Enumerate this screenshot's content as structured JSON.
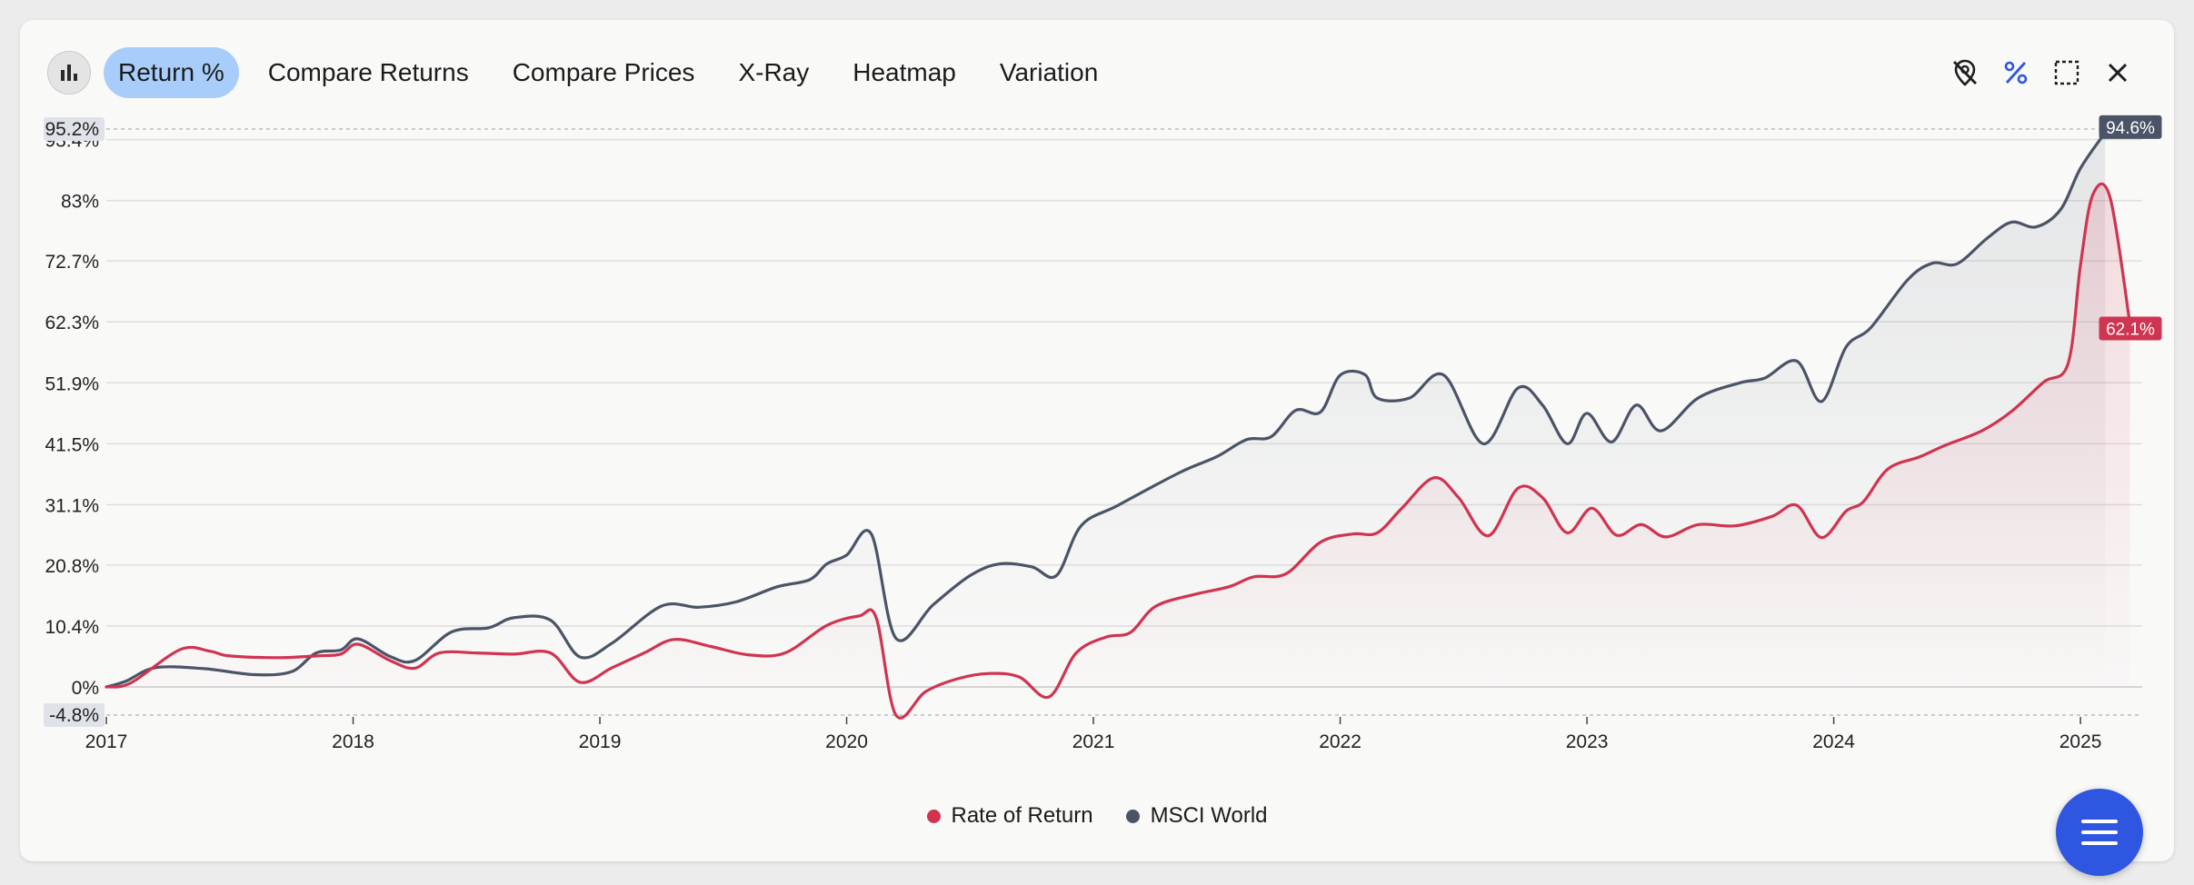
{
  "toolbar": {
    "tabs": [
      {
        "label": "Return %",
        "active": true
      },
      {
        "label": "Compare Returns",
        "active": false
      },
      {
        "label": "Compare Prices",
        "active": false
      },
      {
        "label": "X-Ray",
        "active": false
      },
      {
        "label": "Heatmap",
        "active": false
      },
      {
        "label": "Variation",
        "active": false
      }
    ],
    "left_icon": "bar-chart-icon",
    "right_icons": [
      "location-off-icon",
      "percent-icon",
      "expand-icon",
      "close-icon"
    ],
    "accent_color": "#2e56e0"
  },
  "chart_data": {
    "type": "line",
    "x_ticks": [
      "2017",
      "2018",
      "2019",
      "2020",
      "2021",
      "2022",
      "2023",
      "2024",
      "2025"
    ],
    "y_ticks": [
      "0%",
      "10.4%",
      "20.8%",
      "31.1%",
      "41.5%",
      "51.9%",
      "62.3%",
      "72.7%",
      "83%",
      "93.4%"
    ],
    "y_min_label": "-4.8%",
    "y_max_label": "95.2%",
    "ylim": [
      -4.8,
      95.2
    ],
    "xlim": [
      2017.0,
      2025.25
    ],
    "grid": true,
    "legend_position": "bottom",
    "series": [
      {
        "name": "MSCI World",
        "color": "#4a5466",
        "end_label": "94.6%",
        "points": [
          [
            2017.0,
            0
          ],
          [
            2017.08,
            1
          ],
          [
            2017.2,
            3.3
          ],
          [
            2017.4,
            3.1
          ],
          [
            2017.6,
            2.1
          ],
          [
            2017.75,
            2.6
          ],
          [
            2017.85,
            5.8
          ],
          [
            2017.95,
            6.3
          ],
          [
            2018.02,
            8.2
          ],
          [
            2018.15,
            5.2
          ],
          [
            2018.25,
            4.5
          ],
          [
            2018.4,
            9.4
          ],
          [
            2018.55,
            10.1
          ],
          [
            2018.65,
            11.8
          ],
          [
            2018.8,
            11.4
          ],
          [
            2018.92,
            5.1
          ],
          [
            2019.05,
            7.5
          ],
          [
            2019.25,
            13.8
          ],
          [
            2019.4,
            13.6
          ],
          [
            2019.55,
            14.5
          ],
          [
            2019.72,
            17.1
          ],
          [
            2019.85,
            18.3
          ],
          [
            2019.92,
            21
          ],
          [
            2020.0,
            22.5
          ],
          [
            2020.1,
            26.1
          ],
          [
            2020.2,
            8.3
          ],
          [
            2020.35,
            14
          ],
          [
            2020.5,
            19
          ],
          [
            2020.62,
            21
          ],
          [
            2020.75,
            20.5
          ],
          [
            2020.85,
            19
          ],
          [
            2020.95,
            27.5
          ],
          [
            2021.1,
            31
          ],
          [
            2021.35,
            36.6
          ],
          [
            2021.5,
            39.3
          ],
          [
            2021.62,
            42.2
          ],
          [
            2021.72,
            42.7
          ],
          [
            2021.82,
            47.2
          ],
          [
            2021.92,
            46.9
          ],
          [
            2022.0,
            53.2
          ],
          [
            2022.1,
            53.3
          ],
          [
            2022.15,
            49.3
          ],
          [
            2022.28,
            49.3
          ],
          [
            2022.42,
            53.2
          ],
          [
            2022.58,
            41.5
          ],
          [
            2022.72,
            51
          ],
          [
            2022.82,
            48.1
          ],
          [
            2022.92,
            41.5
          ],
          [
            2023.0,
            46.7
          ],
          [
            2023.1,
            41.8
          ],
          [
            2023.2,
            48.1
          ],
          [
            2023.3,
            43.7
          ],
          [
            2023.45,
            49.3
          ],
          [
            2023.62,
            51.9
          ],
          [
            2023.72,
            52.7
          ],
          [
            2023.85,
            55.6
          ],
          [
            2023.95,
            48.7
          ],
          [
            2024.05,
            58
          ],
          [
            2024.15,
            61.3
          ],
          [
            2024.3,
            69.5
          ],
          [
            2024.4,
            72.3
          ],
          [
            2024.5,
            72.2
          ],
          [
            2024.62,
            76.5
          ],
          [
            2024.72,
            79.3
          ],
          [
            2024.82,
            78.5
          ],
          [
            2024.92,
            81.5
          ],
          [
            2025.0,
            88.5
          ],
          [
            2025.1,
            94.6
          ]
        ]
      },
      {
        "name": "Rate of Return",
        "color": "#cf3450",
        "end_label": "62.1%",
        "points": [
          [
            2017.0,
            0
          ],
          [
            2017.1,
            0.7
          ],
          [
            2017.3,
            6.4
          ],
          [
            2017.42,
            6.1
          ],
          [
            2017.5,
            5.3
          ],
          [
            2017.7,
            5
          ],
          [
            2017.85,
            5.3
          ],
          [
            2017.95,
            5.6
          ],
          [
            2018.02,
            7.3
          ],
          [
            2018.15,
            4.5
          ],
          [
            2018.25,
            3.2
          ],
          [
            2018.35,
            5.8
          ],
          [
            2018.5,
            5.8
          ],
          [
            2018.65,
            5.6
          ],
          [
            2018.8,
            5.8
          ],
          [
            2018.92,
            0.8
          ],
          [
            2019.05,
            3.3
          ],
          [
            2019.18,
            5.8
          ],
          [
            2019.3,
            8.1
          ],
          [
            2019.45,
            6.9
          ],
          [
            2019.6,
            5.5
          ],
          [
            2019.75,
            5.8
          ],
          [
            2019.92,
            10.5
          ],
          [
            2020.05,
            12.1
          ],
          [
            2020.12,
            11.8
          ],
          [
            2020.2,
            -4.8
          ],
          [
            2020.32,
            -0.8
          ],
          [
            2020.45,
            1.4
          ],
          [
            2020.58,
            2.3
          ],
          [
            2020.7,
            1.7
          ],
          [
            2020.82,
            -1.7
          ],
          [
            2020.93,
            5.8
          ],
          [
            2021.05,
            8.5
          ],
          [
            2021.15,
            9.3
          ],
          [
            2021.25,
            13.7
          ],
          [
            2021.4,
            15.7
          ],
          [
            2021.55,
            17.1
          ],
          [
            2021.65,
            18.8
          ],
          [
            2021.78,
            19.3
          ],
          [
            2021.92,
            24.7
          ],
          [
            2022.05,
            26.1
          ],
          [
            2022.15,
            26.3
          ],
          [
            2022.25,
            30.5
          ],
          [
            2022.38,
            35.7
          ],
          [
            2022.48,
            32.3
          ],
          [
            2022.6,
            25.8
          ],
          [
            2022.72,
            33.9
          ],
          [
            2022.82,
            32.3
          ],
          [
            2022.92,
            26.3
          ],
          [
            2023.02,
            30.5
          ],
          [
            2023.12,
            25.9
          ],
          [
            2023.22,
            27.7
          ],
          [
            2023.32,
            25.6
          ],
          [
            2023.45,
            27.7
          ],
          [
            2023.6,
            27.5
          ],
          [
            2023.75,
            29.1
          ],
          [
            2023.85,
            31
          ],
          [
            2023.95,
            25.5
          ],
          [
            2024.05,
            30
          ],
          [
            2024.12,
            31.6
          ],
          [
            2024.22,
            37.2
          ],
          [
            2024.35,
            39.3
          ],
          [
            2024.45,
            41.2
          ],
          [
            2024.6,
            43.7
          ],
          [
            2024.72,
            47
          ],
          [
            2024.85,
            52
          ],
          [
            2024.95,
            55.2
          ],
          [
            2025.0,
            72
          ],
          [
            2025.05,
            84
          ],
          [
            2025.12,
            83.5
          ],
          [
            2025.2,
            62.1
          ]
        ]
      }
    ]
  }
}
